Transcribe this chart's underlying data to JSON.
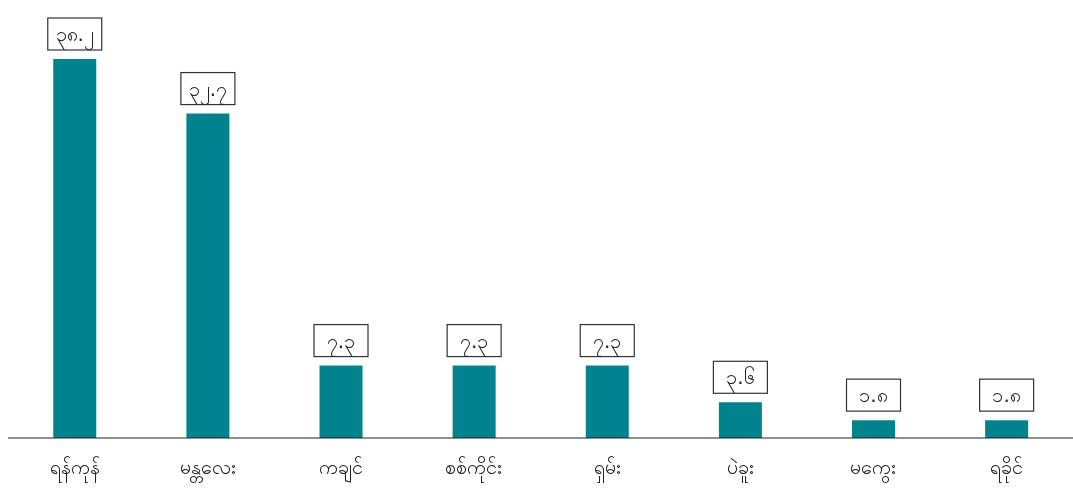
{
  "chart_data": {
    "type": "bar",
    "categories": [
      "ရန်ကုန်",
      "မန္တလေး",
      "ကချင်",
      "စစ်ကိုင်း",
      "ရှမ်း",
      "ပဲခူး",
      "မကွေး",
      "ရခိုင်"
    ],
    "values": [
      38.2,
      32.7,
      7.3,
      7.3,
      7.3,
      3.6,
      1.8,
      1.8
    ],
    "value_labels": [
      "၃၈.၂",
      "၃၂.၇",
      "၇.၃",
      "၇.၃",
      "၇.၃",
      "၃.၆",
      "၁.၈",
      "၁.၈"
    ],
    "color": "#00838c",
    "grid": false,
    "legend": false
  }
}
